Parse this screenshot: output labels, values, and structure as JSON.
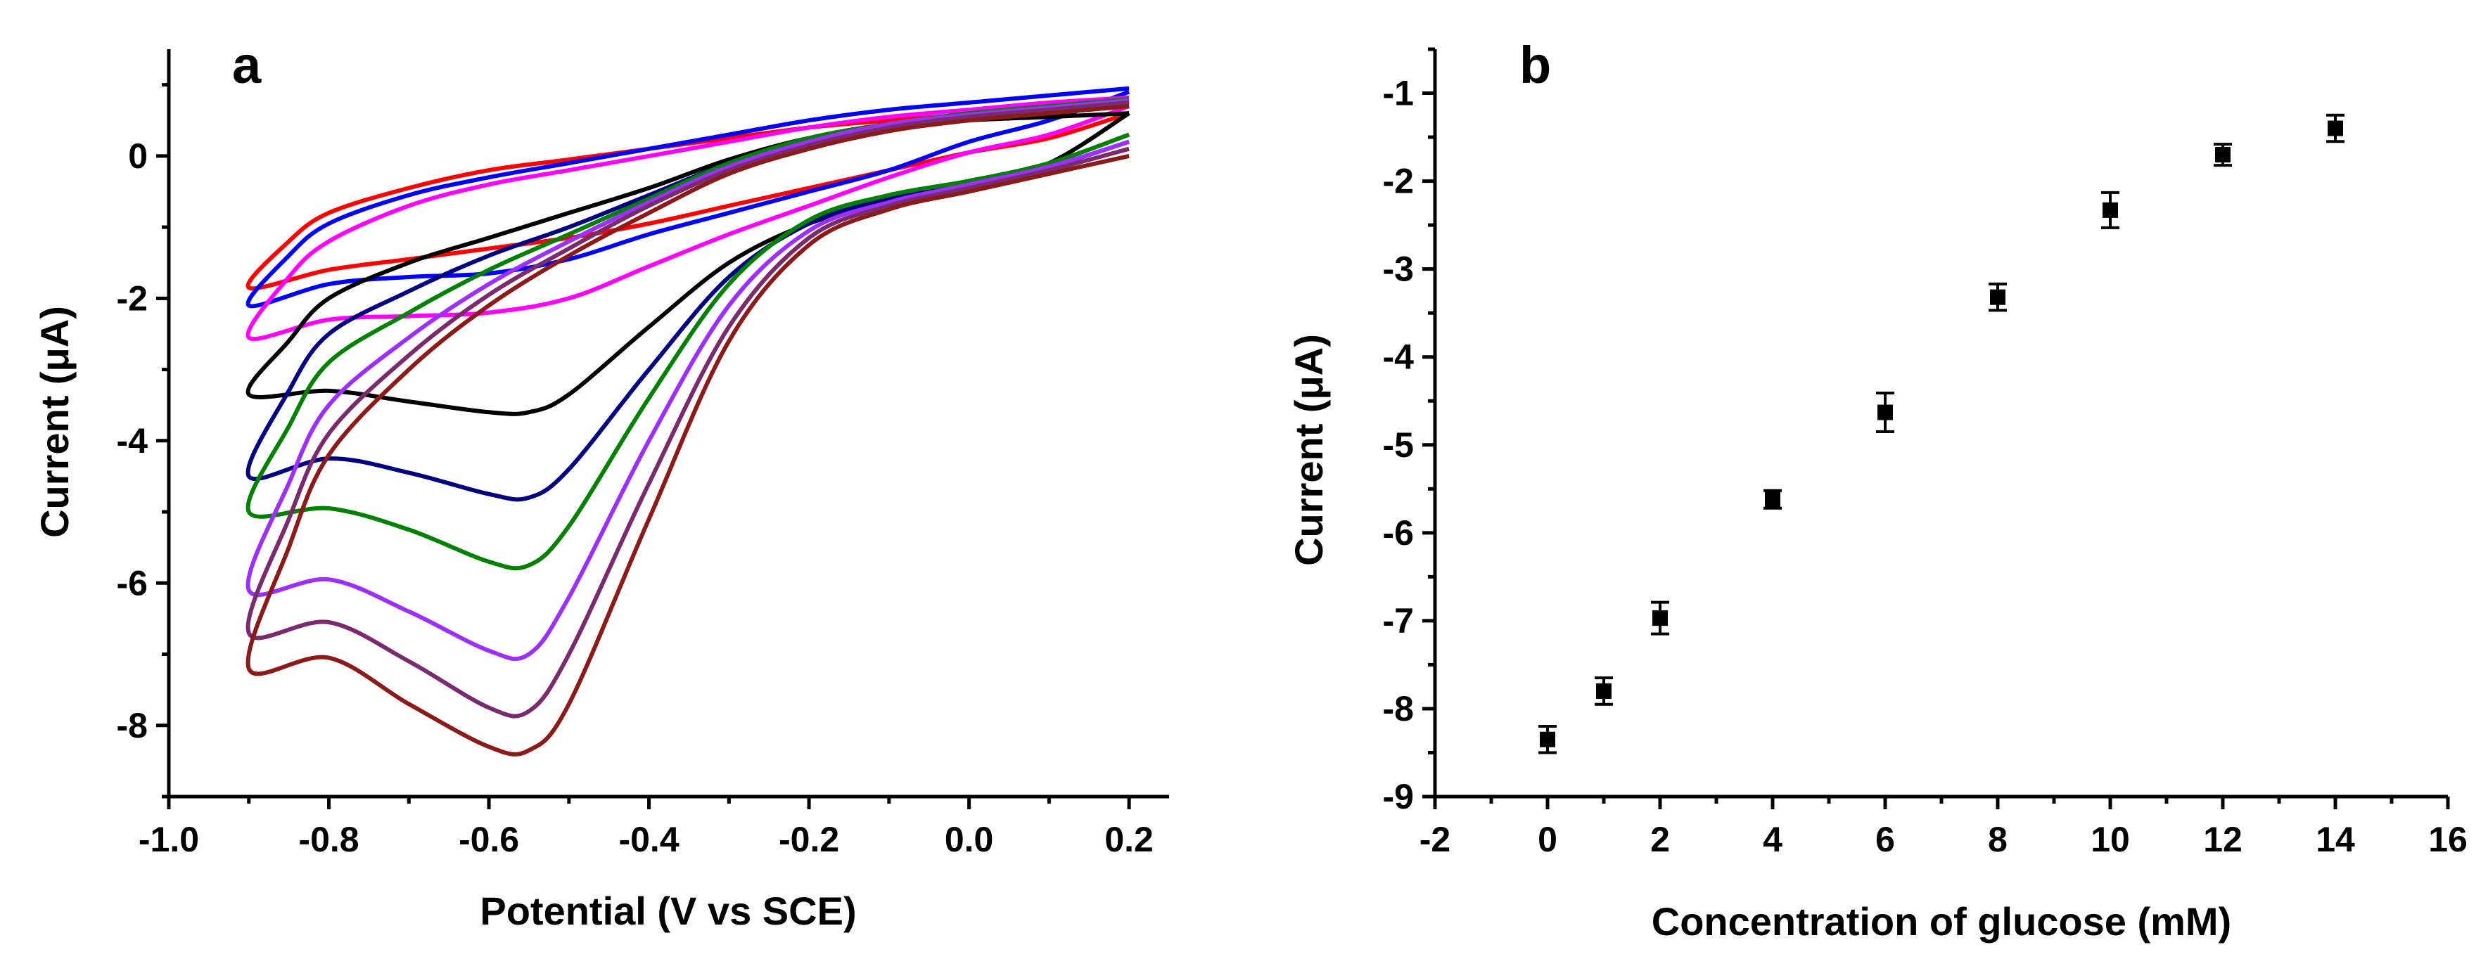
{
  "chart_data": [
    {
      "panel": "a",
      "type": "line",
      "title": "",
      "xlabel": "Potential (V vs SCE)",
      "ylabel": "Current (μA)",
      "xlim": [
        -1.0,
        0.25
      ],
      "ylim": [
        -9.0,
        1.5
      ],
      "xticks": [
        -1.0,
        -0.8,
        -0.6,
        -0.4,
        -0.2,
        0.0,
        0.2
      ],
      "xtick_labels": [
        "-1.0",
        "-0.8",
        "-0.6",
        "-0.4",
        "-0.2",
        "0.0",
        "0.2"
      ],
      "yticks": [
        0,
        -2,
        -4,
        -6,
        -8
      ],
      "ytick_labels": [
        "0",
        "-2",
        "-4",
        "-6",
        "-8"
      ],
      "series": [
        {
          "name": "red",
          "color": "#ff0000",
          "cathodic": [
            [
              0.2,
              0.6
            ],
            [
              0.1,
              0.25
            ],
            [
              0.0,
              0.05
            ],
            [
              -0.1,
              -0.2
            ],
            [
              -0.2,
              -0.45
            ],
            [
              -0.3,
              -0.7
            ],
            [
              -0.4,
              -0.95
            ],
            [
              -0.5,
              -1.15
            ],
            [
              -0.6,
              -1.3
            ],
            [
              -0.7,
              -1.45
            ],
            [
              -0.8,
              -1.6
            ],
            [
              -0.9,
              -1.85
            ]
          ],
          "anodic": [
            [
              -0.9,
              -1.85
            ],
            [
              -0.85,
              -1.2
            ],
            [
              -0.8,
              -0.8
            ],
            [
              -0.7,
              -0.45
            ],
            [
              -0.6,
              -0.2
            ],
            [
              -0.5,
              -0.05
            ],
            [
              -0.4,
              0.1
            ],
            [
              -0.3,
              0.25
            ],
            [
              -0.2,
              0.4
            ],
            [
              -0.1,
              0.5
            ],
            [
              0.0,
              0.58
            ],
            [
              0.1,
              0.65
            ],
            [
              0.2,
              0.7
            ]
          ]
        },
        {
          "name": "blue",
          "color": "#0000ff",
          "cathodic": [
            [
              0.2,
              0.9
            ],
            [
              0.1,
              0.5
            ],
            [
              0.0,
              0.2
            ],
            [
              -0.1,
              -0.2
            ],
            [
              -0.2,
              -0.5
            ],
            [
              -0.3,
              -0.8
            ],
            [
              -0.4,
              -1.1
            ],
            [
              -0.5,
              -1.45
            ],
            [
              -0.6,
              -1.65
            ],
            [
              -0.7,
              -1.7
            ],
            [
              -0.8,
              -1.8
            ],
            [
              -0.9,
              -2.1
            ]
          ],
          "anodic": [
            [
              -0.9,
              -2.1
            ],
            [
              -0.85,
              -1.4
            ],
            [
              -0.8,
              -0.95
            ],
            [
              -0.7,
              -0.55
            ],
            [
              -0.6,
              -0.3
            ],
            [
              -0.5,
              -0.1
            ],
            [
              -0.4,
              0.1
            ],
            [
              -0.3,
              0.3
            ],
            [
              -0.2,
              0.5
            ],
            [
              -0.1,
              0.65
            ],
            [
              0.0,
              0.75
            ],
            [
              0.1,
              0.85
            ],
            [
              0.2,
              0.95
            ]
          ]
        },
        {
          "name": "magenta",
          "color": "#ff00ff",
          "cathodic": [
            [
              0.2,
              0.7
            ],
            [
              0.1,
              0.3
            ],
            [
              0.0,
              0.05
            ],
            [
              -0.1,
              -0.3
            ],
            [
              -0.2,
              -0.7
            ],
            [
              -0.3,
              -1.1
            ],
            [
              -0.4,
              -1.55
            ],
            [
              -0.5,
              -2.0
            ],
            [
              -0.6,
              -2.2
            ],
            [
              -0.7,
              -2.25
            ],
            [
              -0.8,
              -2.3
            ],
            [
              -0.9,
              -2.55
            ]
          ],
          "anodic": [
            [
              -0.9,
              -2.55
            ],
            [
              -0.85,
              -1.7
            ],
            [
              -0.8,
              -1.2
            ],
            [
              -0.7,
              -0.7
            ],
            [
              -0.6,
              -0.4
            ],
            [
              -0.5,
              -0.2
            ],
            [
              -0.4,
              0.0
            ],
            [
              -0.3,
              0.2
            ],
            [
              -0.2,
              0.4
            ],
            [
              -0.1,
              0.55
            ],
            [
              0.0,
              0.65
            ],
            [
              0.1,
              0.75
            ],
            [
              0.2,
              0.82
            ]
          ]
        },
        {
          "name": "black",
          "color": "#000000",
          "cathodic": [
            [
              0.2,
              0.6
            ],
            [
              0.1,
              -0.1
            ],
            [
              0.0,
              -0.4
            ],
            [
              -0.1,
              -0.65
            ],
            [
              -0.2,
              -0.95
            ],
            [
              -0.3,
              -1.5
            ],
            [
              -0.4,
              -2.4
            ],
            [
              -0.5,
              -3.35
            ],
            [
              -0.55,
              -3.6
            ],
            [
              -0.6,
              -3.6
            ],
            [
              -0.7,
              -3.45
            ],
            [
              -0.8,
              -3.3
            ],
            [
              -0.9,
              -3.35
            ]
          ],
          "anodic": [
            [
              -0.9,
              -3.35
            ],
            [
              -0.85,
              -2.6
            ],
            [
              -0.8,
              -2.0
            ],
            [
              -0.7,
              -1.5
            ],
            [
              -0.6,
              -1.15
            ],
            [
              -0.5,
              -0.8
            ],
            [
              -0.4,
              -0.45
            ],
            [
              -0.3,
              -0.05
            ],
            [
              -0.2,
              0.25
            ],
            [
              -0.1,
              0.4
            ],
            [
              0.0,
              0.5
            ],
            [
              0.1,
              0.55
            ],
            [
              0.2,
              0.6
            ]
          ]
        },
        {
          "name": "navy",
          "color": "#000080",
          "cathodic": [
            [
              0.2,
              0.2
            ],
            [
              0.1,
              -0.15
            ],
            [
              0.0,
              -0.35
            ],
            [
              -0.1,
              -0.6
            ],
            [
              -0.2,
              -0.95
            ],
            [
              -0.3,
              -1.7
            ],
            [
              -0.4,
              -3.0
            ],
            [
              -0.5,
              -4.4
            ],
            [
              -0.55,
              -4.8
            ],
            [
              -0.6,
              -4.75
            ],
            [
              -0.7,
              -4.45
            ],
            [
              -0.8,
              -4.25
            ],
            [
              -0.9,
              -4.5
            ]
          ],
          "anodic": [
            [
              -0.9,
              -4.5
            ],
            [
              -0.85,
              -3.3
            ],
            [
              -0.8,
              -2.5
            ],
            [
              -0.7,
              -1.9
            ],
            [
              -0.6,
              -1.4
            ],
            [
              -0.5,
              -1.0
            ],
            [
              -0.4,
              -0.55
            ],
            [
              -0.3,
              -0.1
            ],
            [
              -0.2,
              0.25
            ],
            [
              -0.1,
              0.45
            ],
            [
              0.0,
              0.55
            ],
            [
              0.1,
              0.65
            ],
            [
              0.2,
              0.75
            ]
          ]
        },
        {
          "name": "green",
          "color": "#008000",
          "cathodic": [
            [
              0.2,
              0.3
            ],
            [
              0.1,
              -0.1
            ],
            [
              0.0,
              -0.35
            ],
            [
              -0.1,
              -0.55
            ],
            [
              -0.2,
              -0.9
            ],
            [
              -0.3,
              -1.8
            ],
            [
              -0.4,
              -3.4
            ],
            [
              -0.5,
              -5.2
            ],
            [
              -0.55,
              -5.75
            ],
            [
              -0.6,
              -5.7
            ],
            [
              -0.7,
              -5.25
            ],
            [
              -0.8,
              -4.95
            ],
            [
              -0.9,
              -5.0
            ]
          ],
          "anodic": [
            [
              -0.9,
              -5.0
            ],
            [
              -0.85,
              -3.8
            ],
            [
              -0.8,
              -2.9
            ],
            [
              -0.7,
              -2.2
            ],
            [
              -0.6,
              -1.6
            ],
            [
              -0.5,
              -1.1
            ],
            [
              -0.4,
              -0.6
            ],
            [
              -0.3,
              -0.1
            ],
            [
              -0.2,
              0.25
            ],
            [
              -0.1,
              0.45
            ],
            [
              0.0,
              0.6
            ],
            [
              0.1,
              0.7
            ],
            [
              0.2,
              0.8
            ]
          ]
        },
        {
          "name": "purple",
          "color": "#9b30ff",
          "cathodic": [
            [
              0.2,
              0.2
            ],
            [
              0.1,
              -0.15
            ],
            [
              0.0,
              -0.4
            ],
            [
              -0.1,
              -0.65
            ],
            [
              -0.2,
              -1.05
            ],
            [
              -0.3,
              -2.1
            ],
            [
              -0.4,
              -4.0
            ],
            [
              -0.5,
              -6.2
            ],
            [
              -0.55,
              -7.0
            ],
            [
              -0.6,
              -6.95
            ],
            [
              -0.7,
              -6.4
            ],
            [
              -0.8,
              -5.95
            ],
            [
              -0.9,
              -6.1
            ]
          ],
          "anodic": [
            [
              -0.9,
              -6.1
            ],
            [
              -0.85,
              -4.6
            ],
            [
              -0.8,
              -3.5
            ],
            [
              -0.7,
              -2.55
            ],
            [
              -0.6,
              -1.8
            ],
            [
              -0.5,
              -1.2
            ],
            [
              -0.4,
              -0.65
            ],
            [
              -0.3,
              -0.15
            ],
            [
              -0.2,
              0.2
            ],
            [
              -0.1,
              0.45
            ],
            [
              0.0,
              0.58
            ],
            [
              0.1,
              0.68
            ],
            [
              0.2,
              0.78
            ]
          ]
        },
        {
          "name": "violet-brown",
          "color": "#7a2b6e",
          "cathodic": [
            [
              0.2,
              0.1
            ],
            [
              0.1,
              -0.2
            ],
            [
              0.0,
              -0.45
            ],
            [
              -0.1,
              -0.7
            ],
            [
              -0.2,
              -1.15
            ],
            [
              -0.3,
              -2.4
            ],
            [
              -0.4,
              -4.6
            ],
            [
              -0.5,
              -7.0
            ],
            [
              -0.55,
              -7.8
            ],
            [
              -0.6,
              -7.75
            ],
            [
              -0.7,
              -7.1
            ],
            [
              -0.8,
              -6.55
            ],
            [
              -0.9,
              -6.7
            ]
          ],
          "anodic": [
            [
              -0.9,
              -6.7
            ],
            [
              -0.85,
              -5.1
            ],
            [
              -0.8,
              -3.9
            ],
            [
              -0.7,
              -2.8
            ],
            [
              -0.6,
              -1.95
            ],
            [
              -0.5,
              -1.3
            ],
            [
              -0.4,
              -0.7
            ],
            [
              -0.3,
              -0.2
            ],
            [
              -0.2,
              0.15
            ],
            [
              -0.1,
              0.4
            ],
            [
              0.0,
              0.55
            ],
            [
              0.1,
              0.65
            ],
            [
              0.2,
              0.75
            ]
          ]
        },
        {
          "name": "maroon",
          "color": "#8b1a1a",
          "cathodic": [
            [
              0.2,
              0.0
            ],
            [
              0.1,
              -0.25
            ],
            [
              0.0,
              -0.5
            ],
            [
              -0.1,
              -0.75
            ],
            [
              -0.2,
              -1.25
            ],
            [
              -0.3,
              -2.6
            ],
            [
              -0.4,
              -5.1
            ],
            [
              -0.5,
              -7.7
            ],
            [
              -0.55,
              -8.35
            ],
            [
              -0.6,
              -8.3
            ],
            [
              -0.7,
              -7.7
            ],
            [
              -0.8,
              -7.05
            ],
            [
              -0.9,
              -7.2
            ]
          ],
          "anodic": [
            [
              -0.9,
              -7.2
            ],
            [
              -0.85,
              -5.5
            ],
            [
              -0.8,
              -4.2
            ],
            [
              -0.7,
              -3.0
            ],
            [
              -0.6,
              -2.1
            ],
            [
              -0.5,
              -1.4
            ],
            [
              -0.4,
              -0.8
            ],
            [
              -0.3,
              -0.25
            ],
            [
              -0.2,
              0.1
            ],
            [
              -0.1,
              0.35
            ],
            [
              0.0,
              0.5
            ],
            [
              0.1,
              0.6
            ],
            [
              0.2,
              0.7
            ]
          ]
        }
      ]
    },
    {
      "panel": "b",
      "type": "scatter",
      "title": "",
      "xlabel": "Concentration of glucose (mM)",
      "ylabel": "Current (μA)",
      "xlim": [
        -2,
        16
      ],
      "ylim": [
        -9,
        -0.5
      ],
      "xticks": [
        -2,
        0,
        2,
        4,
        6,
        8,
        10,
        12,
        14,
        16
      ],
      "xtick_labels": [
        "-2",
        "0",
        "2",
        "4",
        "6",
        "8",
        "10",
        "12",
        "14",
        "16"
      ],
      "yticks": [
        -1,
        -2,
        -3,
        -4,
        -5,
        -6,
        -7,
        -8,
        -9
      ],
      "ytick_labels": [
        "-1",
        "-2",
        "-3",
        "-4",
        "-5",
        "-6",
        "-7",
        "-8",
        "-9"
      ],
      "series": [
        {
          "name": "glucose response",
          "color": "#000000",
          "x": [
            0,
            1,
            2,
            4,
            6,
            8,
            10,
            12,
            14
          ],
          "y": [
            -8.35,
            -7.8,
            -6.97,
            -5.62,
            -4.63,
            -3.32,
            -2.33,
            -1.7,
            -1.4
          ],
          "error": [
            0.15,
            0.15,
            0.18,
            0.1,
            0.22,
            0.15,
            0.2,
            0.12,
            0.15
          ]
        }
      ]
    }
  ]
}
